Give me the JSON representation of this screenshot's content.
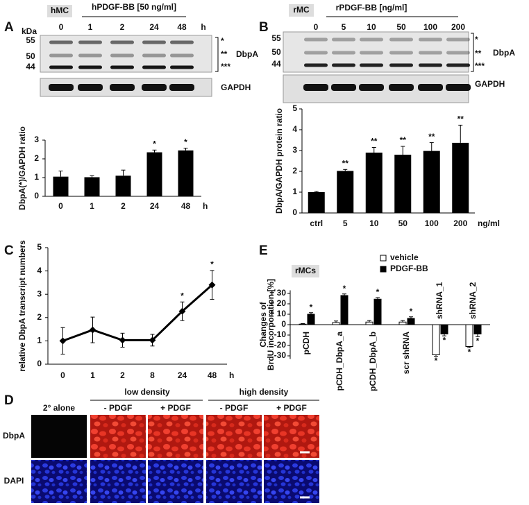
{
  "panel_labels": [
    "A",
    "B",
    "C",
    "D",
    "E"
  ],
  "blots": [
    {
      "control": "hMC",
      "treatment": "hPDGF-BB [50 ng/ml]",
      "mw_unit": "kDa",
      "lanes": [
        "0",
        "1",
        "2",
        "24",
        "48"
      ],
      "lane_unit": "h",
      "mw": [
        "55",
        "50",
        "44"
      ],
      "bands": [
        "*",
        "**",
        "***"
      ],
      "protein": "DbpA",
      "loading": "GAPDH"
    },
    {
      "control": "rMC",
      "treatment": "rPDGF-BB [ng/ml]",
      "lanes": [
        "0",
        "5",
        "10",
        "50",
        "100",
        "200"
      ],
      "mw": [
        "55",
        "50",
        "44"
      ],
      "bands": [
        "*",
        "**",
        "***"
      ],
      "protein": "DbpA",
      "loading": "GAPDH"
    }
  ],
  "chart_data": [
    {
      "type": "bar",
      "ylabel": "DbpA(*)/GAPDH ratio",
      "categories": [
        "0",
        "1",
        "2",
        "24",
        "48"
      ],
      "x_unit": "h",
      "values": [
        1.05,
        1.02,
        1.1,
        2.35,
        2.45
      ],
      "errors": [
        0.3,
        0.08,
        0.3,
        0.12,
        0.12
      ],
      "sig": [
        null,
        null,
        null,
        "*",
        "*"
      ],
      "color": "#000000",
      "ylim": [
        0,
        3
      ],
      "yticks": [
        0,
        1,
        2,
        3
      ]
    },
    {
      "type": "bar",
      "ylabel": "DbpA/GAPDH protein ratio",
      "categories": [
        "ctrl",
        "5",
        "10",
        "50",
        "100",
        "200"
      ],
      "x_unit": "ng/ml",
      "values": [
        1.0,
        2.02,
        2.9,
        2.8,
        2.98,
        3.37
      ],
      "errors": [
        0.03,
        0.07,
        0.25,
        0.4,
        0.4,
        0.85
      ],
      "sig": [
        null,
        "**",
        "**",
        "**",
        "**",
        "**"
      ],
      "color": "#000000",
      "ylim": [
        0,
        5
      ],
      "yticks": [
        0,
        1,
        2,
        3,
        4,
        5
      ]
    },
    {
      "type": "line",
      "ylabel": "relative DbpA transcript numbers",
      "categories": [
        "0",
        "1",
        "2",
        "8",
        "24",
        "48"
      ],
      "x_unit": "h",
      "values": [
        1.0,
        1.47,
        1.03,
        1.03,
        2.27,
        3.4
      ],
      "errors": [
        0.57,
        0.55,
        0.3,
        0.25,
        0.4,
        0.62
      ],
      "sig": [
        null,
        null,
        null,
        null,
        "*",
        "*"
      ],
      "color": "#000000",
      "ylim": [
        0,
        5
      ],
      "yticks": [
        0,
        1,
        2,
        3,
        4,
        5
      ]
    },
    {
      "type": "bar",
      "title": "rMCs",
      "ylabel": [
        "Changes of",
        "BrdU incorporation [%]"
      ],
      "categories": [
        "pCDH",
        "pCDH_DbpA_a",
        "pCDH_DbpA_b",
        "scr shRNA",
        "shRNA_1",
        "shRNA_2"
      ],
      "series": [
        {
          "name": "vehicle",
          "color": "#ffffff",
          "values": [
            0.5,
            2,
            2.5,
            2.5,
            -29,
            -21
          ],
          "errors": [
            0.5,
            1.5,
            1.5,
            1.5,
            1.5,
            1.2
          ],
          "sig": [
            null,
            null,
            null,
            null,
            "*",
            "*"
          ]
        },
        {
          "name": "PDGF-BB",
          "color": "#000000",
          "values": [
            10,
            28,
            24.5,
            6,
            -9,
            -9
          ],
          "errors": [
            1.5,
            1.5,
            1.5,
            1.5,
            1.8,
            2.5
          ],
          "sig": [
            "*",
            "*",
            "*",
            "*",
            "*",
            "*"
          ]
        }
      ],
      "ylim": [
        -33,
        33
      ],
      "yticks": [
        {
          "value": 30,
          "label": "+ 30"
        },
        {
          "value": 20,
          "label": "+ 20"
        },
        {
          "value": 10,
          "label": "+ 10"
        },
        0,
        -10,
        -20,
        -30
      ]
    }
  ],
  "micrographs": {
    "groups": [
      "low density",
      "high density"
    ],
    "columns": [
      "2° alone",
      "- PDGF",
      "+ PDGF",
      "- PDGF",
      "+ PDGF"
    ],
    "rows": [
      "DbpA",
      "DAPI"
    ]
  }
}
